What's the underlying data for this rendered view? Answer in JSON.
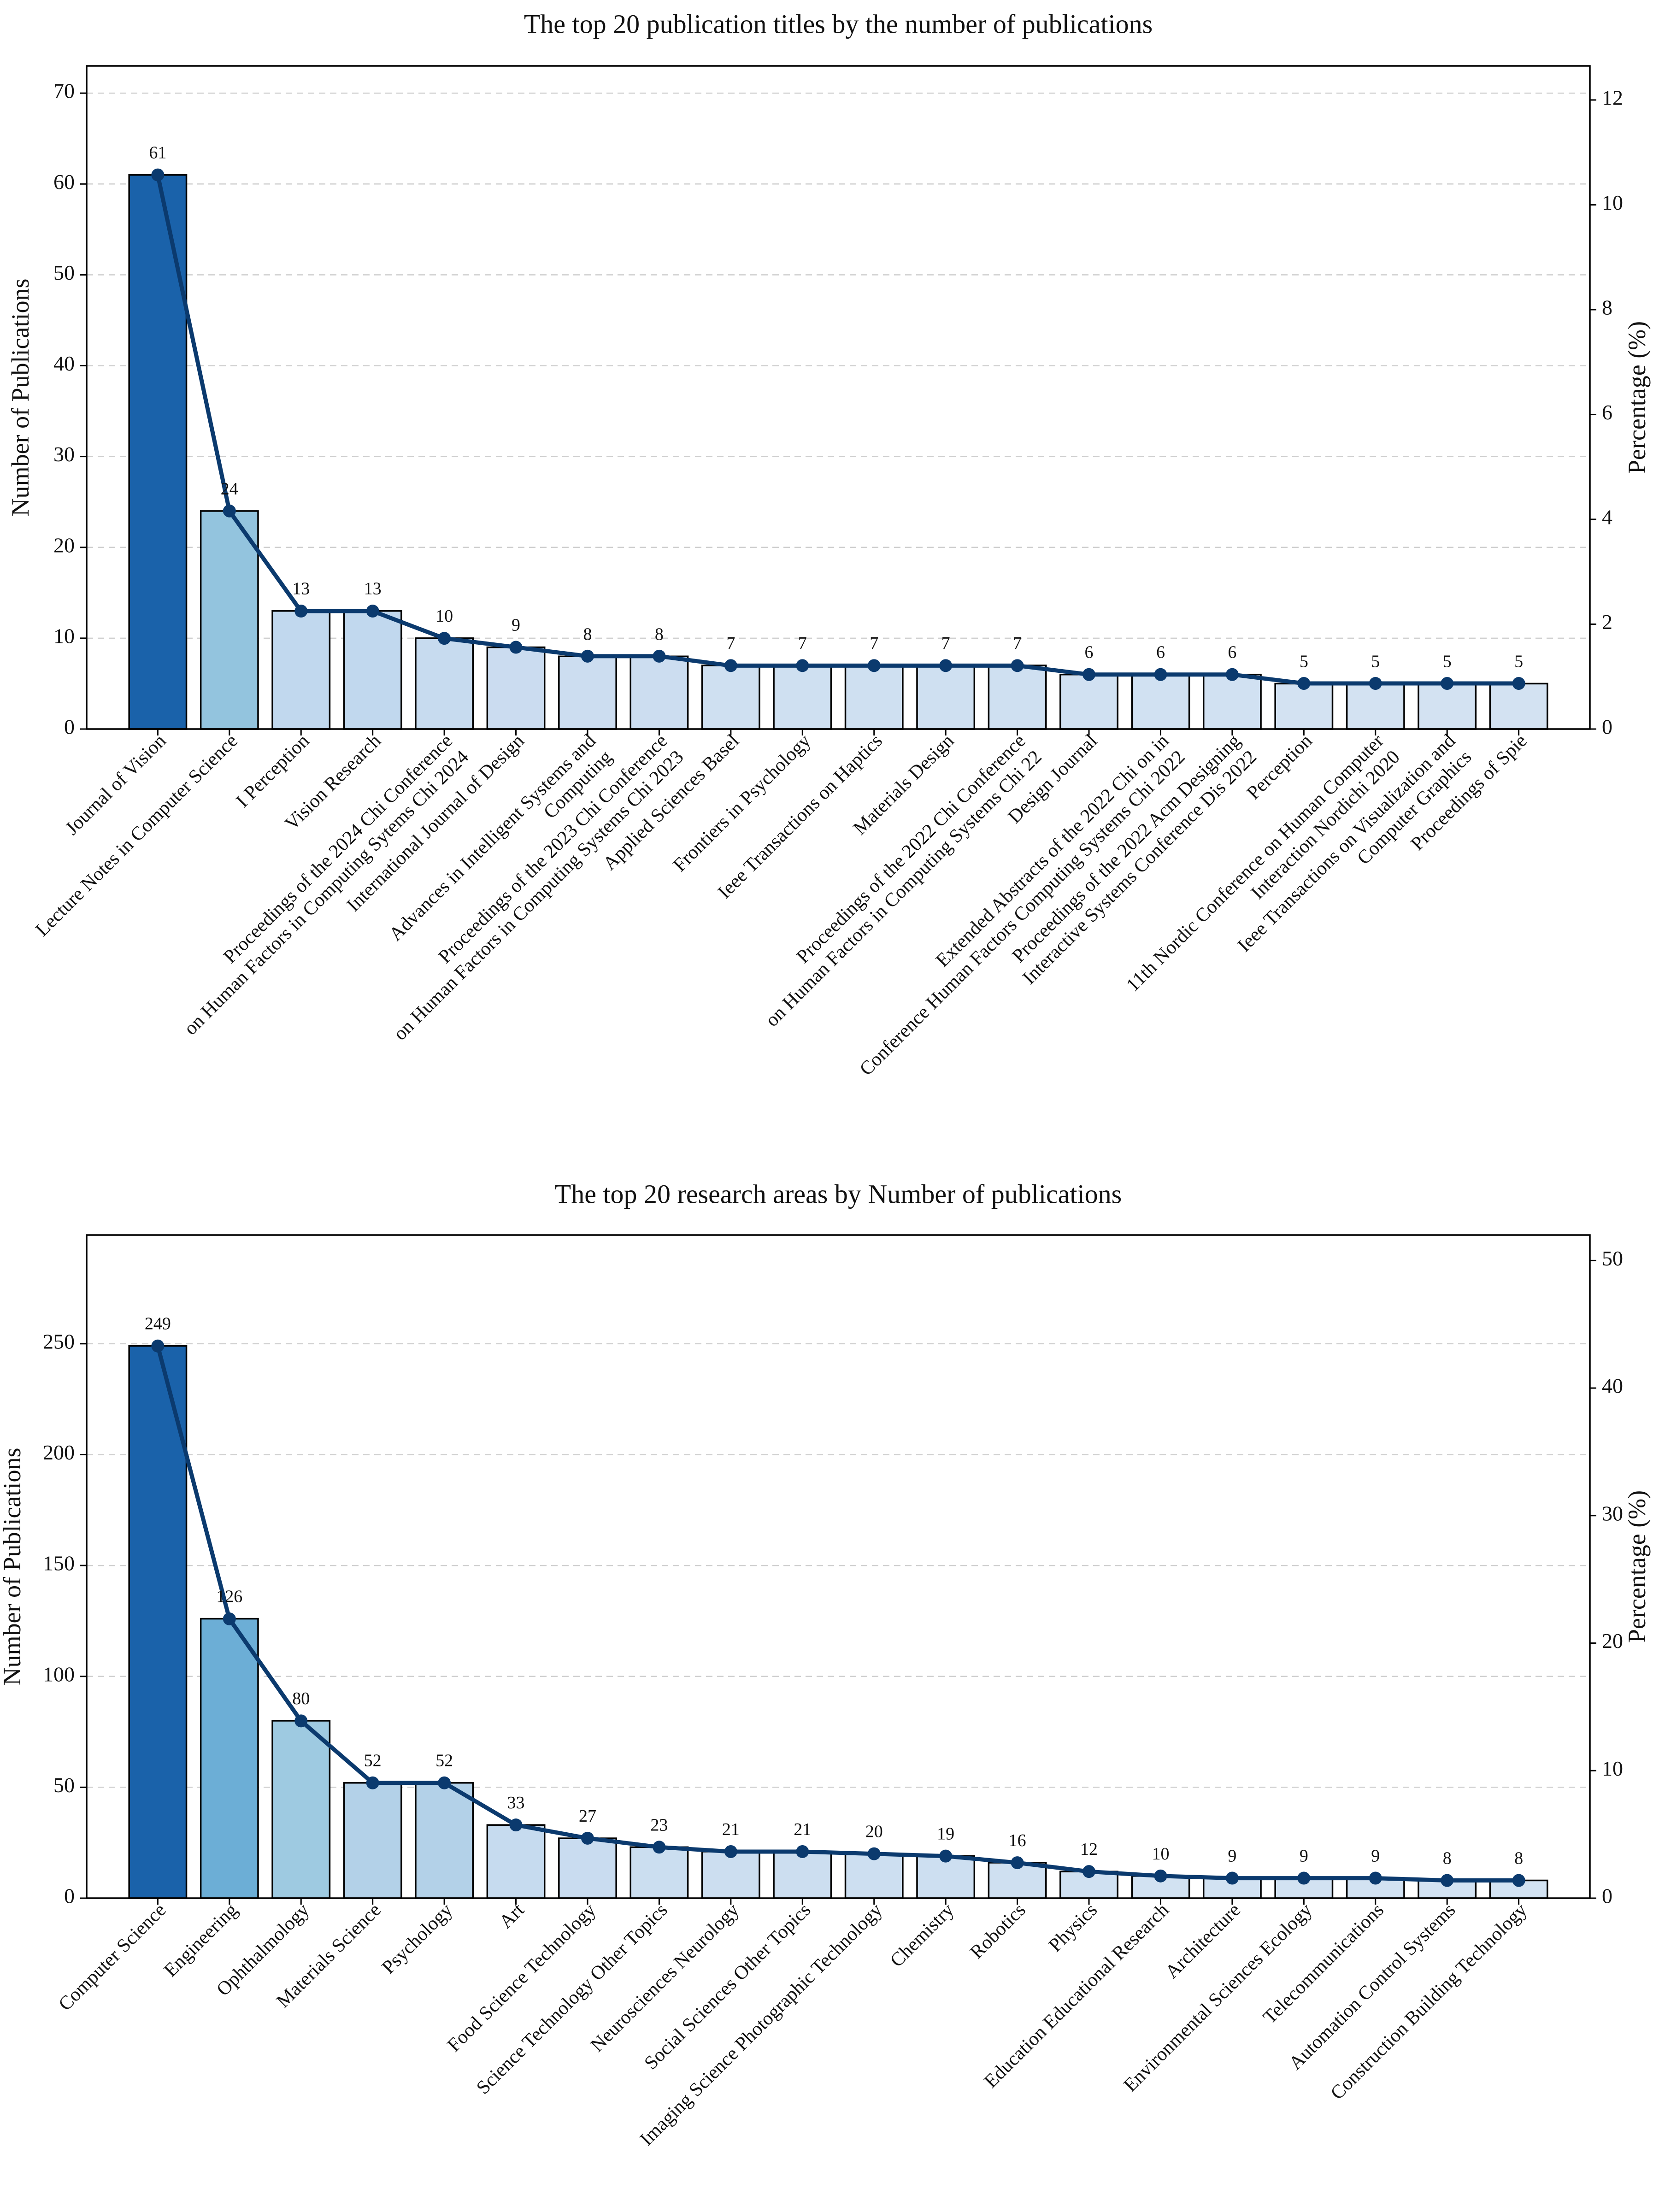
{
  "chart_data": [
    {
      "type": "bar",
      "title": "The top 20 publication titles by the number of publications",
      "ylabel": "Number of Publications",
      "y2label": "Percentage (%)",
      "ylim": [
        0,
        73
      ],
      "y2lim": [
        0,
        12.65
      ],
      "yticks": [
        0,
        10,
        20,
        30,
        40,
        50,
        60,
        70
      ],
      "y2ticks": [
        0,
        2,
        4,
        6,
        8,
        10,
        12
      ],
      "line_color": "#0b3a6e",
      "categories": [
        "Journal of Vision",
        "Lecture Notes in Computer Science",
        "I Perception",
        "Vision Research",
        "Proceedings of the 2024 Chi Conference\non Human Factors in Computing Sytems Chi 2024",
        "International Journal of Design",
        "Advances in Intelligent Systems and\nComputing",
        "Proceedings of the 2023 Chi Conference\non Human Factors in Computing Systems Chi 2023",
        "Applied Sciences Basel",
        "Frontiers in Psychology",
        "Ieee Transactions on Haptics",
        "Materials Design",
        "Proceedings of the 2022 Chi Conference\non Human Factors in Computing Systems Chi 22",
        "Design Journal",
        "Extended Abstracts of the 2022 Chi on in\nConference Human Factors Computing Systems Chi 2022",
        "Proceedings of the 2022 Acm Designing\nInteractive Systems Conference Dis 2022",
        "Perception",
        "11th Nordic Conference on Human Computer\nInteraction Nordichi 2020",
        "Ieee Transactions on Visualization and\nComputer Graphics",
        "Proceedings of Spie"
      ],
      "values": [
        61,
        24,
        13,
        13,
        10,
        9,
        8,
        8,
        7,
        7,
        7,
        7,
        7,
        6,
        6,
        6,
        5,
        5,
        5,
        5
      ],
      "value_labels": [
        "61",
        "24",
        "13",
        "13",
        "10",
        "9",
        "8",
        "8",
        "7",
        "7",
        "7",
        "7",
        "7",
        "6",
        "6",
        "6",
        "5",
        "5",
        "5",
        "5"
      ],
      "percentages": [
        10.57,
        4.16,
        2.25,
        2.25,
        1.73,
        1.56,
        1.39,
        1.39,
        1.21,
        1.21,
        1.21,
        1.21,
        1.21,
        1.04,
        1.04,
        1.04,
        0.87,
        0.87,
        0.87,
        0.87
      ],
      "bar_colors": [
        "#1a62aa",
        "#93c4de",
        "#c1d8ee",
        "#c1d8ee",
        "#c7dbef",
        "#cbdcf0",
        "#ccddf0",
        "#ccddf0",
        "#cfe0f1",
        "#cfe0f1",
        "#cfe0f1",
        "#cfe0f1",
        "#cfe0f1",
        "#d1e1f2",
        "#d1e1f2",
        "#d1e1f2",
        "#d3e2f2",
        "#d3e2f2",
        "#d3e2f2",
        "#d3e2f2"
      ]
    },
    {
      "type": "bar",
      "title": "The top 20 research areas by Number of publications",
      "ylabel": "Number of Publications",
      "y2label": "Percentage (%)",
      "ylim": [
        0,
        299
      ],
      "y2lim": [
        0,
        52
      ],
      "yticks": [
        0,
        50,
        100,
        150,
        200,
        250
      ],
      "y2ticks": [
        0,
        10,
        20,
        30,
        40,
        50
      ],
      "line_color": "#0b3a6e",
      "categories": [
        "Computer Science",
        "Engineering",
        "Ophthalmology",
        "Materials Science",
        "Psychology",
        "Art",
        "Food Science Technology",
        "Science Technology Other Topics",
        "Neurosciences Neurology",
        "Social Sciences Other Topics",
        "Imaging Science Photographic Technology",
        "Chemistry",
        "Robotics",
        "Physics",
        "Education Educational Research",
        "Architecture",
        "Environmental Sciences Ecology",
        "Telecommunications",
        "Automation Control Systems",
        "Construction Building Technology"
      ],
      "values": [
        249,
        126,
        80,
        52,
        52,
        33,
        27,
        23,
        21,
        21,
        20,
        19,
        16,
        12,
        10,
        9,
        9,
        9,
        8,
        8
      ],
      "value_labels": [
        "249",
        "126",
        "80",
        "52",
        "52",
        "33",
        "27",
        "23",
        "21",
        "21",
        "20",
        "19",
        "16",
        "12",
        "10",
        "9",
        "9",
        "9",
        "8",
        "8"
      ],
      "percentages": [
        43.3,
        21.9,
        13.9,
        9.04,
        9.04,
        5.74,
        4.7,
        4.0,
        3.65,
        3.65,
        3.48,
        3.3,
        2.78,
        2.09,
        1.74,
        1.57,
        1.57,
        1.57,
        1.39,
        1.39
      ],
      "bar_colors": [
        "#1a62aa",
        "#6caed6",
        "#9ecae1",
        "#b3d1e8",
        "#b3d1e8",
        "#c6dbef",
        "#c9dcf0",
        "#cbdef0",
        "#ccdef0",
        "#ccdef0",
        "#cddff1",
        "#cddff1",
        "#cfe0f1",
        "#d0e1f2",
        "#d2e2f2",
        "#d2e2f2",
        "#d2e2f2",
        "#d2e2f2",
        "#d3e3f3",
        "#d3e3f3"
      ]
    }
  ]
}
